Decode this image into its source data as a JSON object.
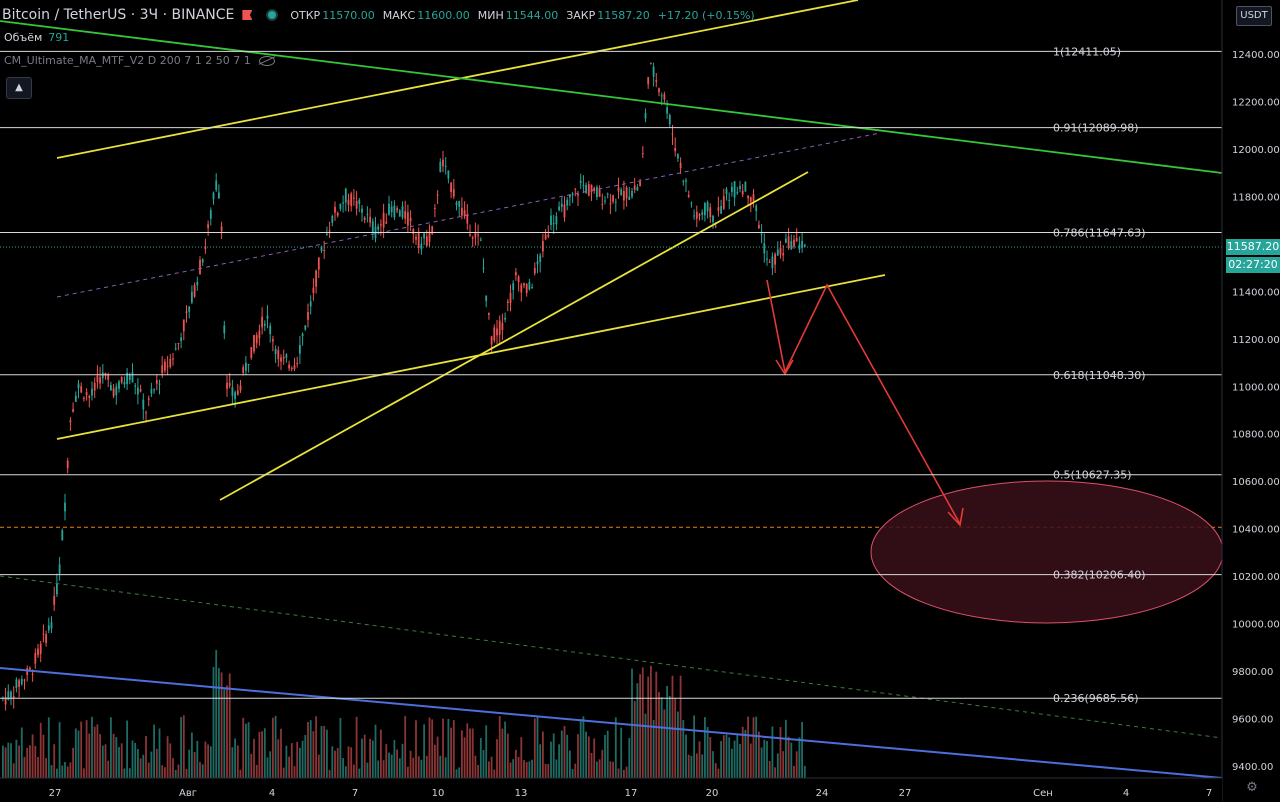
{
  "header": {
    "symbol": "Bitcoin / TetherUS · 3Ч · BINANCE",
    "open_label": "ОТКР",
    "open": "11570.00",
    "high_label": "МАКС",
    "high": "11600.00",
    "low_label": "МИН",
    "low": "11544.00",
    "close_label": "ЗАКР",
    "close": "11587.20",
    "change": "+17.20 (+0.15%)"
  },
  "volume": {
    "label": "Объём",
    "value": "791"
  },
  "indicator": {
    "label": "CM_Ultimate_MA_MTF_V2 D 200 7 1 2 50 7 1"
  },
  "collapse_glyph": "▲",
  "currency": "USDT",
  "price_axis": {
    "labels": [
      "12400.00",
      "12200.00",
      "12000.00",
      "11800.00",
      "11400.00",
      "11200.00",
      "11000.00",
      "10800.00",
      "10600.00",
      "10400.00",
      "10200.00",
      "10000.00",
      "9800.00",
      "9600.00",
      "9400.00"
    ],
    "current_price": "11587.20",
    "countdown": "02:27:20"
  },
  "time_axis": {
    "labels": [
      "27",
      "Авг",
      "4",
      "7",
      "10",
      "13",
      "17",
      "20",
      "24",
      "27",
      "Сен",
      "4",
      "7"
    ]
  },
  "fib_levels": [
    {
      "label": "1(12411.05)",
      "price": 12411.05
    },
    {
      "label": "0.91(12089.98)",
      "price": 12089.98
    },
    {
      "label": "0.786(11647.63)",
      "price": 11647.63
    },
    {
      "label": "0.618(11048.30)",
      "price": 11048.3
    },
    {
      "label": "0.5(10627.35)",
      "price": 10627.35
    },
    {
      "label": "0.382(10206.40)",
      "price": 10206.4
    },
    {
      "label": "0.236(9685.56)",
      "price": 9685.56
    }
  ],
  "target_level": 10400,
  "colors": {
    "up": "#26a69a",
    "down": "#ef5350",
    "trend_yellow": "#e8e23a",
    "trend_green": "#4caf50",
    "trend_blue": "#4c6fdc",
    "arrow": "#e53935",
    "zone": "#3a0f1a",
    "target_line": "#f57c00"
  },
  "gear_glyph": "⚙"
}
